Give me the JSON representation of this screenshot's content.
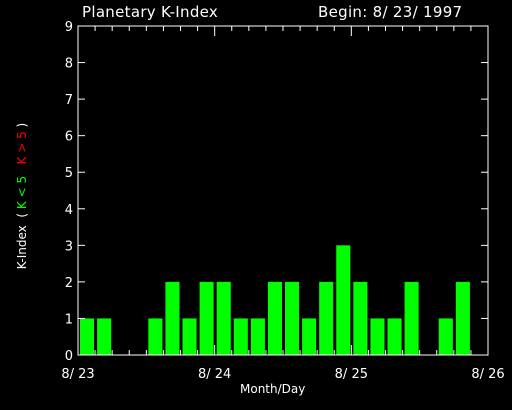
{
  "chart_data": {
    "type": "bar",
    "title": "Planetary K-Index",
    "begin_label": "Begin: 8/ 23/ 1997",
    "xlabel": "Month/Day",
    "ylabel": {
      "prefix": "K-Index",
      "open": "(",
      "low": "K < 5",
      "high": "K > 5",
      "close": ")"
    },
    "ylim": [
      0,
      9
    ],
    "yticks": [
      "0",
      "1",
      "2",
      "3",
      "4",
      "5",
      "6",
      "7",
      "8",
      "9"
    ],
    "xticks": [
      "8/ 23",
      "8/ 24",
      "8/ 25",
      "8/ 26"
    ],
    "values": [
      1,
      1,
      0,
      0,
      1,
      2,
      1,
      2,
      2,
      1,
      1,
      2,
      2,
      1,
      2,
      3,
      2,
      1,
      1,
      2,
      0,
      1,
      2,
      0
    ],
    "colors": {
      "low": "#00ff00",
      "high": "#ff0000",
      "axis": "#ffffff",
      "background": "#000000"
    }
  }
}
